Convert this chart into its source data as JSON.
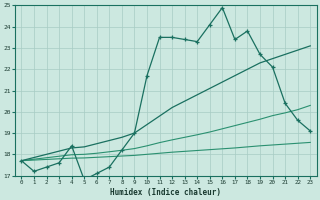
{
  "x": [
    0,
    1,
    2,
    3,
    4,
    5,
    6,
    7,
    8,
    9,
    10,
    11,
    12,
    13,
    14,
    15,
    16,
    17,
    18,
    19,
    20,
    21,
    22,
    23
  ],
  "line_jagged": [
    17.7,
    17.2,
    17.4,
    17.6,
    18.4,
    16.8,
    17.1,
    17.4,
    18.2,
    19.0,
    21.7,
    23.5,
    23.5,
    23.4,
    23.3,
    24.1,
    24.9,
    23.4,
    23.8,
    22.7,
    22.1,
    20.4,
    19.6,
    19.1
  ],
  "line_upper": [
    17.7,
    17.85,
    18.0,
    18.15,
    18.3,
    18.35,
    18.5,
    18.65,
    18.8,
    19.0,
    19.4,
    19.8,
    20.2,
    20.5,
    20.8,
    21.1,
    21.4,
    21.7,
    22.0,
    22.3,
    22.5,
    22.7,
    22.9,
    23.1
  ],
  "line_middle": [
    17.7,
    17.77,
    17.84,
    17.91,
    17.98,
    18.0,
    18.05,
    18.12,
    18.19,
    18.27,
    18.4,
    18.55,
    18.68,
    18.8,
    18.92,
    19.05,
    19.2,
    19.35,
    19.5,
    19.65,
    19.82,
    19.95,
    20.1,
    20.3
  ],
  "line_flat": [
    17.7,
    17.73,
    17.76,
    17.79,
    17.82,
    17.83,
    17.86,
    17.89,
    17.92,
    17.95,
    18.0,
    18.05,
    18.1,
    18.14,
    18.18,
    18.22,
    18.26,
    18.3,
    18.35,
    18.4,
    18.44,
    18.48,
    18.52,
    18.56
  ],
  "color_dark": "#1a7060",
  "color_mid": "#2a9070",
  "bg_color": "#cce8e0",
  "grid_color": "#a8ccC4",
  "xlabel": "Humidex (Indice chaleur)",
  "ylim": [
    17,
    25
  ],
  "xlim": [
    -0.5,
    23.5
  ],
  "yticks": [
    17,
    18,
    19,
    20,
    21,
    22,
    23,
    24,
    25
  ],
  "xticks": [
    0,
    1,
    2,
    3,
    4,
    5,
    6,
    7,
    8,
    9,
    10,
    11,
    12,
    13,
    14,
    15,
    16,
    17,
    18,
    19,
    20,
    21,
    22,
    23
  ]
}
